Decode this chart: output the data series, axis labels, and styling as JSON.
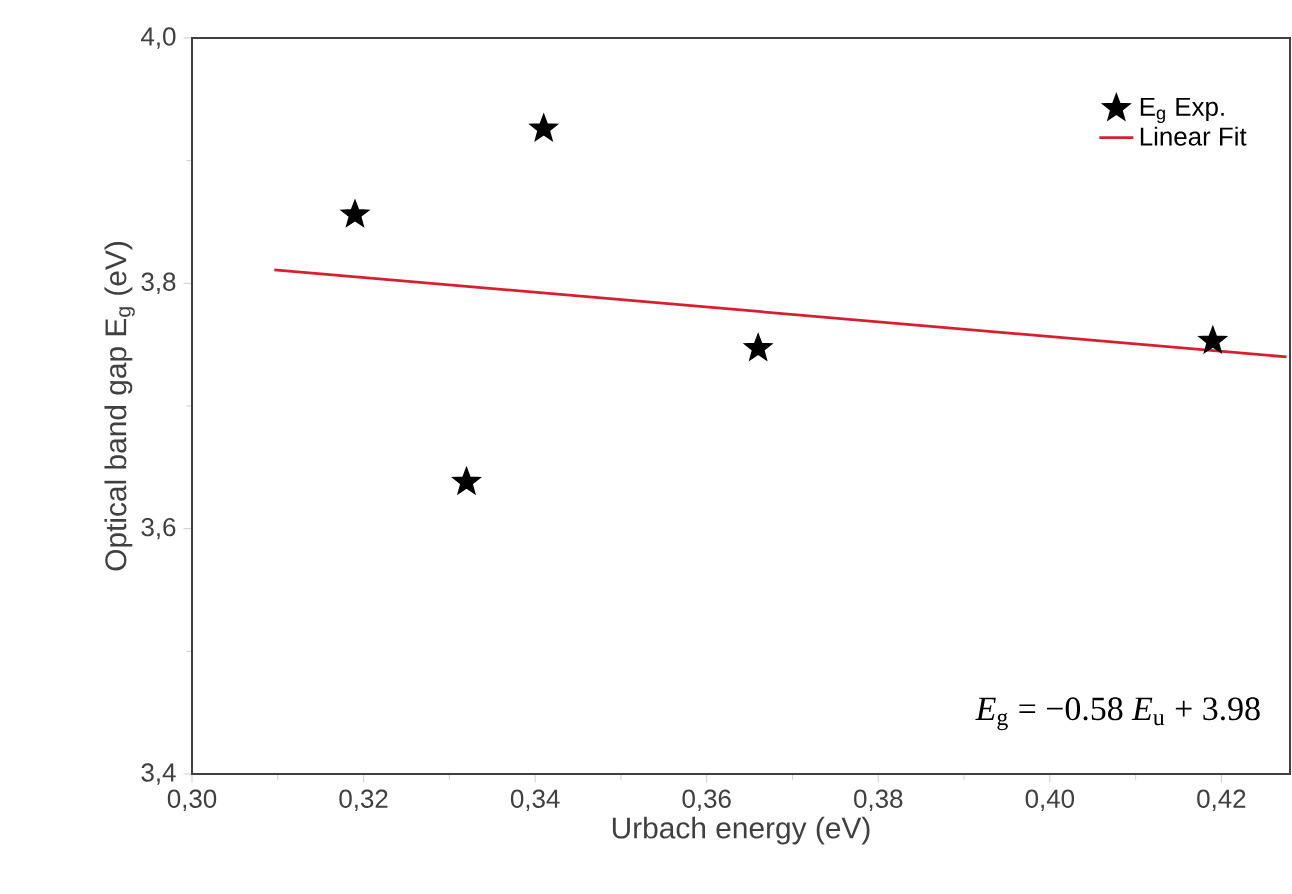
{
  "chart_data": {
    "type": "scatter",
    "xlabel": "Urbach energy (eV)",
    "ylabel": "Optical band gap  E$_{g}$ (eV)",
    "xlim": [
      0.3,
      0.428
    ],
    "ylim": [
      3.4,
      4.0
    ],
    "xticks": [
      {
        "value": 0.3,
        "label": "0,30"
      },
      {
        "value": 0.32,
        "label": "0,32"
      },
      {
        "value": 0.34,
        "label": "0,34"
      },
      {
        "value": 0.36,
        "label": "0,36"
      },
      {
        "value": 0.38,
        "label": "0,38"
      },
      {
        "value": 0.4,
        "label": "0,40"
      },
      {
        "value": 0.42,
        "label": "0,42"
      }
    ],
    "yticks": [
      {
        "value": 3.4,
        "label": "3,4"
      },
      {
        "value": 3.6,
        "label": "3,6"
      },
      {
        "value": 3.8,
        "label": "3,8"
      },
      {
        "value": 4.0,
        "label": "4,0"
      }
    ],
    "series": [
      {
        "name": "E$_{g}$ Exp.",
        "color": "#000000",
        "marker": "star",
        "x": [
          0.319,
          0.332,
          0.341,
          0.366,
          0.419
        ],
        "values": [
          3.856,
          3.638,
          3.926,
          3.747,
          3.753
        ]
      },
      {
        "name": "Linear Fit",
        "type": "line",
        "color": "#d62030",
        "marker": "none",
        "x": [
          0.3096,
          0.4276
        ],
        "values": [
          3.811,
          3.74
        ]
      }
    ],
    "legend": "top right",
    "grid": false,
    "annotations": [
      "*E*$_{g}$ = −0.58 *E*$_{u}$ + 3.98"
    ]
  }
}
